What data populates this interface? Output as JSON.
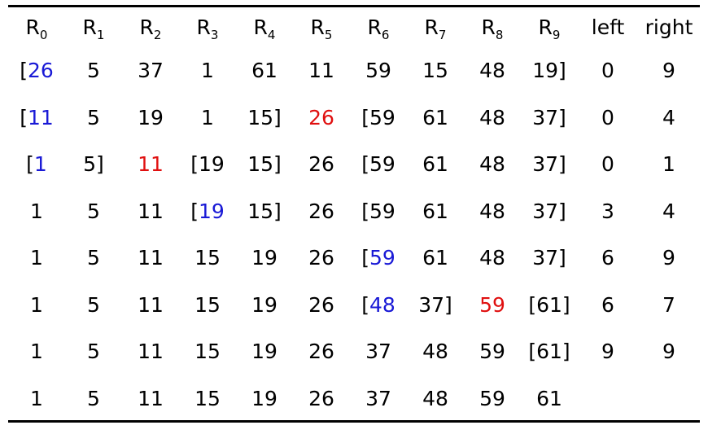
{
  "table": {
    "headers": [
      {
        "base": "R",
        "sub": "0"
      },
      {
        "base": "R",
        "sub": "1"
      },
      {
        "base": "R",
        "sub": "2"
      },
      {
        "base": "R",
        "sub": "3"
      },
      {
        "base": "R",
        "sub": "4"
      },
      {
        "base": "R",
        "sub": "5"
      },
      {
        "base": "R",
        "sub": "6"
      },
      {
        "base": "R",
        "sub": "7"
      },
      {
        "base": "R",
        "sub": "8"
      },
      {
        "base": "R",
        "sub": "9"
      },
      {
        "base": "left",
        "sub": ""
      },
      {
        "base": "right",
        "sub": ""
      }
    ],
    "rows": [
      [
        [
          {
            "t": "[",
            "c": ""
          },
          {
            "t": "26",
            "c": "blue"
          }
        ],
        [
          {
            "t": "5",
            "c": ""
          }
        ],
        [
          {
            "t": "37",
            "c": ""
          }
        ],
        [
          {
            "t": "1",
            "c": ""
          }
        ],
        [
          {
            "t": "61",
            "c": ""
          }
        ],
        [
          {
            "t": "11",
            "c": ""
          }
        ],
        [
          {
            "t": "59",
            "c": ""
          }
        ],
        [
          {
            "t": "15",
            "c": ""
          }
        ],
        [
          {
            "t": "48",
            "c": ""
          }
        ],
        [
          {
            "t": "19]",
            "c": ""
          }
        ],
        [
          {
            "t": "0",
            "c": ""
          }
        ],
        [
          {
            "t": "9",
            "c": ""
          }
        ]
      ],
      [
        [
          {
            "t": "[",
            "c": ""
          },
          {
            "t": "11",
            "c": "blue"
          }
        ],
        [
          {
            "t": "5",
            "c": ""
          }
        ],
        [
          {
            "t": "19",
            "c": ""
          }
        ],
        [
          {
            "t": "1",
            "c": ""
          }
        ],
        [
          {
            "t": "15]",
            "c": ""
          }
        ],
        [
          {
            "t": "26",
            "c": "red"
          }
        ],
        [
          {
            "t": "[59",
            "c": ""
          }
        ],
        [
          {
            "t": "61",
            "c": ""
          }
        ],
        [
          {
            "t": "48",
            "c": ""
          }
        ],
        [
          {
            "t": "37]",
            "c": ""
          }
        ],
        [
          {
            "t": "0",
            "c": ""
          }
        ],
        [
          {
            "t": "4",
            "c": ""
          }
        ]
      ],
      [
        [
          {
            "t": "[",
            "c": ""
          },
          {
            "t": "1",
            "c": "blue"
          }
        ],
        [
          {
            "t": "5]",
            "c": ""
          }
        ],
        [
          {
            "t": "11",
            "c": "red"
          }
        ],
        [
          {
            "t": "[19",
            "c": ""
          }
        ],
        [
          {
            "t": "15]",
            "c": ""
          }
        ],
        [
          {
            "t": "26",
            "c": ""
          }
        ],
        [
          {
            "t": "[59",
            "c": ""
          }
        ],
        [
          {
            "t": "61",
            "c": ""
          }
        ],
        [
          {
            "t": "48",
            "c": ""
          }
        ],
        [
          {
            "t": "37]",
            "c": ""
          }
        ],
        [
          {
            "t": "0",
            "c": ""
          }
        ],
        [
          {
            "t": "1",
            "c": ""
          }
        ]
      ],
      [
        [
          {
            "t": "1",
            "c": ""
          }
        ],
        [
          {
            "t": "5",
            "c": ""
          }
        ],
        [
          {
            "t": "11",
            "c": ""
          }
        ],
        [
          {
            "t": "[",
            "c": ""
          },
          {
            "t": "19",
            "c": "blue"
          }
        ],
        [
          {
            "t": "15]",
            "c": ""
          }
        ],
        [
          {
            "t": "26",
            "c": ""
          }
        ],
        [
          {
            "t": "[59",
            "c": ""
          }
        ],
        [
          {
            "t": "61",
            "c": ""
          }
        ],
        [
          {
            "t": "48",
            "c": ""
          }
        ],
        [
          {
            "t": "37]",
            "c": ""
          }
        ],
        [
          {
            "t": "3",
            "c": ""
          }
        ],
        [
          {
            "t": "4",
            "c": ""
          }
        ]
      ],
      [
        [
          {
            "t": "1",
            "c": ""
          }
        ],
        [
          {
            "t": "5",
            "c": ""
          }
        ],
        [
          {
            "t": "11",
            "c": ""
          }
        ],
        [
          {
            "t": "15",
            "c": ""
          }
        ],
        [
          {
            "t": "19",
            "c": ""
          }
        ],
        [
          {
            "t": "26",
            "c": ""
          }
        ],
        [
          {
            "t": "[",
            "c": ""
          },
          {
            "t": "59",
            "c": "blue"
          }
        ],
        [
          {
            "t": "61",
            "c": ""
          }
        ],
        [
          {
            "t": "48",
            "c": ""
          }
        ],
        [
          {
            "t": "37]",
            "c": ""
          }
        ],
        [
          {
            "t": "6",
            "c": ""
          }
        ],
        [
          {
            "t": "9",
            "c": ""
          }
        ]
      ],
      [
        [
          {
            "t": "1",
            "c": ""
          }
        ],
        [
          {
            "t": "5",
            "c": ""
          }
        ],
        [
          {
            "t": "11",
            "c": ""
          }
        ],
        [
          {
            "t": "15",
            "c": ""
          }
        ],
        [
          {
            "t": "19",
            "c": ""
          }
        ],
        [
          {
            "t": "26",
            "c": ""
          }
        ],
        [
          {
            "t": "[",
            "c": ""
          },
          {
            "t": "48",
            "c": "blue"
          }
        ],
        [
          {
            "t": "37]",
            "c": ""
          }
        ],
        [
          {
            "t": "59",
            "c": "red"
          }
        ],
        [
          {
            "t": "[61]",
            "c": ""
          }
        ],
        [
          {
            "t": "6",
            "c": ""
          }
        ],
        [
          {
            "t": "7",
            "c": ""
          }
        ]
      ],
      [
        [
          {
            "t": "1",
            "c": ""
          }
        ],
        [
          {
            "t": "5",
            "c": ""
          }
        ],
        [
          {
            "t": "11",
            "c": ""
          }
        ],
        [
          {
            "t": "15",
            "c": ""
          }
        ],
        [
          {
            "t": "19",
            "c": ""
          }
        ],
        [
          {
            "t": "26",
            "c": ""
          }
        ],
        [
          {
            "t": "37",
            "c": ""
          }
        ],
        [
          {
            "t": "48",
            "c": ""
          }
        ],
        [
          {
            "t": "59",
            "c": ""
          }
        ],
        [
          {
            "t": "[61]",
            "c": ""
          }
        ],
        [
          {
            "t": "9",
            "c": ""
          }
        ],
        [
          {
            "t": "9",
            "c": ""
          }
        ]
      ],
      [
        [
          {
            "t": "1",
            "c": ""
          }
        ],
        [
          {
            "t": "5",
            "c": ""
          }
        ],
        [
          {
            "t": "11",
            "c": ""
          }
        ],
        [
          {
            "t": "15",
            "c": ""
          }
        ],
        [
          {
            "t": "19",
            "c": ""
          }
        ],
        [
          {
            "t": "26",
            "c": ""
          }
        ],
        [
          {
            "t": "37",
            "c": ""
          }
        ],
        [
          {
            "t": "48",
            "c": ""
          }
        ],
        [
          {
            "t": "59",
            "c": ""
          }
        ],
        [
          {
            "t": "61",
            "c": ""
          }
        ],
        [],
        []
      ]
    ]
  },
  "colors": {
    "blue": "#1a1ad6",
    "red": "#e01010",
    "text": "#000000"
  }
}
